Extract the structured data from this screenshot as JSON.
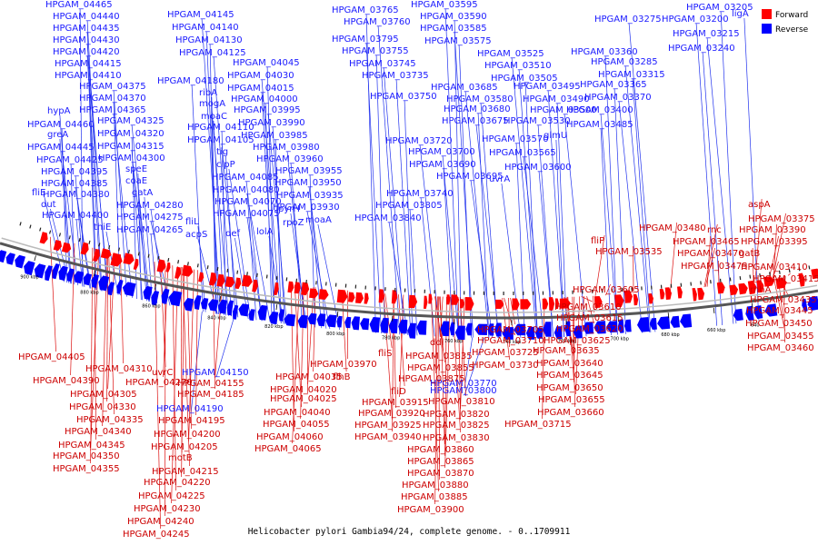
{
  "genome_title": "Helicobacter pylori Gambia94/24, complete genome. - 0..1709911",
  "legend": {
    "items": [
      {
        "label": "Forward",
        "color": "#ff0000"
      },
      {
        "label": "Reverse",
        "color": "#0000ff"
      }
    ]
  },
  "colors": {
    "forward": "#ff0000",
    "reverse": "#0000ff",
    "forward_label": "#cc0000",
    "reverse_label": "#1a1aff",
    "backbone": "#555555"
  },
  "ticks": [
    "900 kbp",
    "880 kbp",
    "860 kbp",
    "840 kbp",
    "820 kbp",
    "800 kbp",
    "780 kbp",
    "760 kbp",
    "740 kbp",
    "720 kbp",
    "700 kbp",
    "680 kbp",
    "660 kbp",
    "640"
  ],
  "reverse_labels": [
    "HPGAM_04465",
    "HPGAM_04440",
    "HPGAM_04435",
    "HPGAM_04430",
    "HPGAM_04420",
    "HPGAM_04415",
    "HPGAM_04410",
    "HPGAM_04375",
    "HPGAM_04370",
    "HPGAM_04365",
    "hypA",
    "HPGAM_04460",
    "HPGAM_04325",
    "greA",
    "HPGAM_04320",
    "HPGAM_04445",
    "HPGAM_04315",
    "HPGAM_04425",
    "HPGAM_04300",
    "HPGAM_04395",
    "speE",
    "HPGAM_04385",
    "coaE",
    "fliE",
    "HPGAM_04380",
    "gatA",
    "dut",
    "HPGAM_04280",
    "HPGAM_04400",
    "HPGAM_04275",
    "thiE",
    "HPGAM_04265",
    "HPGAM_04145",
    "HPGAM_04140",
    "HPGAM_04130",
    "HPGAM_04125",
    "HPGAM_04180",
    "ribA",
    "mogA",
    "moaC",
    "HPGAM_04110",
    "HPGAM_04105",
    "tig",
    "clpP",
    "HPGAM_04085",
    "HPGAM_04080",
    "HPGAM_04070",
    "HPGAM_04075",
    "fliL",
    "acpS",
    "def",
    "HPGAM_04045",
    "HPGAM_04030",
    "HPGAM_04015",
    "HPGAM_04000",
    "HPGAM_03995",
    "HPGAM_03990",
    "HPGAM_03985",
    "HPGAM_03980",
    "HPGAM_03960",
    "HPGAM_03955",
    "HPGAM_03950",
    "HPGAM_03935",
    "HPGAM_03930",
    "pyrH",
    "rpoZ",
    "moaA",
    "lolA",
    "HPGAM_03765",
    "HPGAM_03760",
    "HPGAM_03795",
    "HPGAM_03755",
    "HPGAM_03745",
    "HPGAM_03735",
    "HPGAM_03750",
    "HPGAM_03720",
    "HPGAM_03740",
    "HPGAM_03805",
    "HPGAM_03840",
    "HPGAM_03595",
    "HPGAM_03590",
    "HPGAM_03585",
    "HPGAM_03575",
    "HPGAM_03525",
    "HPGAM_03510",
    "HPGAM_03505",
    "HPGAM_03685",
    "HPGAM_03580",
    "HPGAM_03680",
    "HPGAM_03675",
    "HPGAM_03700",
    "HPGAM_03690",
    "HPGAM_03695",
    "HPGAM_03495",
    "HPGAM_03490",
    "HPGAM_03500",
    "HPGAM_03530",
    "HPGAM_03570",
    "HPGAM_03565",
    "HPGAM_03600",
    "glmU",
    "uvrA",
    "HPGAM_03205",
    "HPGAM_03275",
    "HPGAM_03200",
    "ligA",
    "HPGAM_03215",
    "HPGAM_03240",
    "HPGAM_03360",
    "HPGAM_03285",
    "HPGAM_03315",
    "HPGAM_03365",
    "HPGAM_03370",
    "HPGAM_03400",
    "HPGAM_03485",
    "HPGAM_04150",
    "HPGAM_04190",
    "HPGAM_03770",
    "HPGAM_03800"
  ],
  "forward_labels": [
    "HPGAM_04405",
    "HPGAM_04390",
    "HPGAM_04310",
    "HPGAM_04305",
    "HPGAM_04330",
    "HPGAM_04335",
    "HPGAM_04340",
    "HPGAM_04345",
    "HPGAM_04350",
    "HPGAM_04355",
    "uvrC",
    "HPGAM_04270",
    "HPGAM_04185",
    "HPGAM_04155",
    "HPGAM_04195",
    "HPGAM_04200",
    "HPGAM_04205",
    "motB",
    "HPGAM_04215",
    "HPGAM_04220",
    "HPGAM_04225",
    "HPGAM_04230",
    "HPGAM_04240",
    "HPGAM_04245",
    "HPGAM_04035",
    "flhB",
    "HPGAM_04020",
    "HPGAM_04025",
    "HPGAM_04040",
    "HPGAM_04055",
    "HPGAM_04060",
    "HPGAM_04065",
    "HPGAM_03970",
    "fliS",
    "ddl",
    "HPGAM_03835",
    "HPGAM_03855",
    "HPGAM_03875",
    "fliD",
    "HPGAM_03915",
    "HPGAM_03920",
    "HPGAM_03925",
    "HPGAM_03940",
    "HPGAM_03810",
    "HPGAM_03820",
    "HPGAM_03825",
    "HPGAM_03830",
    "HPGAM_03860",
    "HPGAM_03865",
    "HPGAM_03870",
    "HPGAM_03880",
    "HPGAM_03885",
    "HPGAM_03900",
    "HPGAM_03705",
    "HPGAM_03710",
    "HPGAM_03725",
    "HPGAM_03730",
    "HPGAM_03715",
    "HPGAM_03605",
    "HPGAM_03610",
    "HPGAM_03615",
    "HPGAM_03620",
    "HPGAM_03625",
    "HPGAM_03635",
    "HPGAM_03640",
    "HPGAM_03645",
    "HPGAM_03650",
    "HPGAM_03655",
    "HPGAM_03660",
    "fliP",
    "HPGAM_03535",
    "HPGAM_03480",
    "rnc",
    "HPGAM_03465",
    "HPGAM_03470",
    "HPGAM_03475",
    "aspA",
    "HPGAM_03375",
    "HPGAM_03390",
    "HPGAM_03395",
    "gatB",
    "HPGAM_03410",
    "rnhA",
    "HPGAM_03415",
    "HPGAM_03435",
    "HPGAM_03445",
    "HPGAM_03450",
    "HPGAM_03455",
    "HPGAM_03460"
  ]
}
